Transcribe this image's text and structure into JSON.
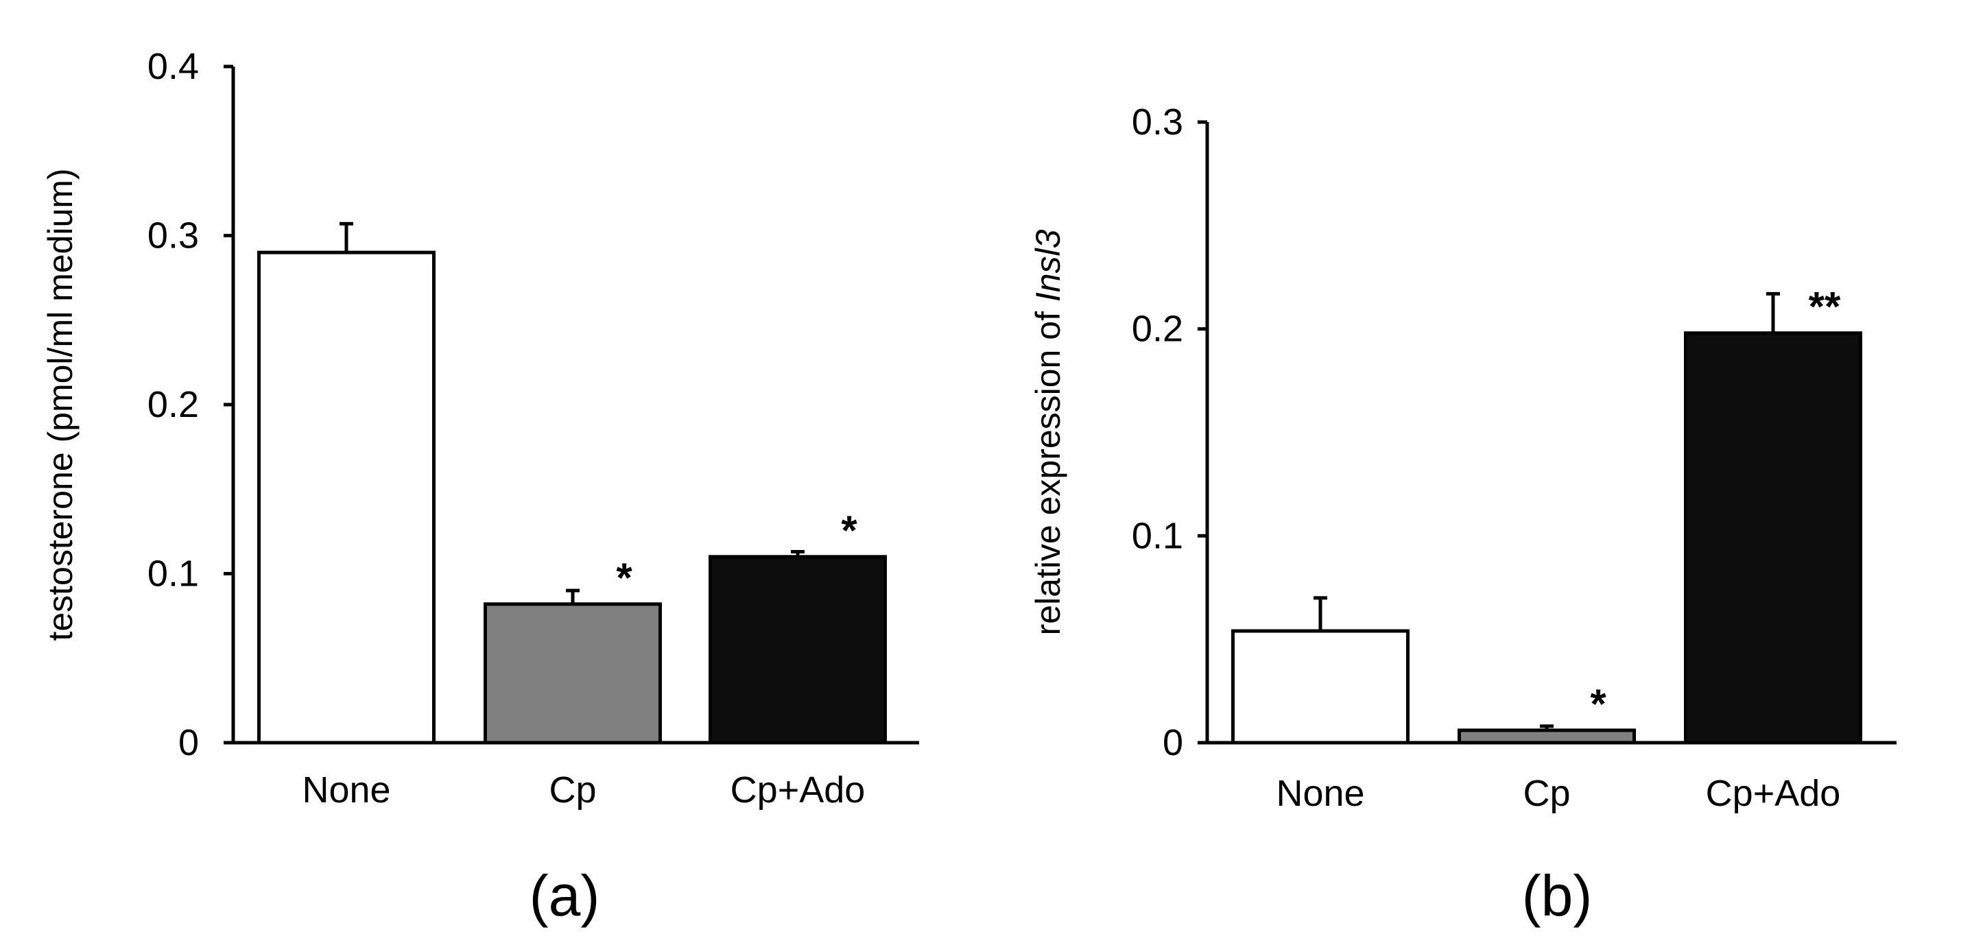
{
  "chart_data": [
    {
      "type": "bar",
      "panel_label": "(a)",
      "title": "",
      "xlabel": "",
      "ylabel": "testosterone (pmol/ml medium)",
      "ylabel_parts": [
        "testosterone (pmol/ml medium)"
      ],
      "ylim": [
        0,
        0.4
      ],
      "yticks": [
        0,
        0.1,
        0.2,
        0.3,
        0.4
      ],
      "ytick_labels": [
        "0",
        "0.1",
        "0.2",
        "0.3",
        "0.4"
      ],
      "grid": false,
      "categories": [
        "None",
        "Cp",
        "Cp+Ado"
      ],
      "values": [
        0.29,
        0.082,
        0.11
      ],
      "errors": [
        0.017,
        0.008,
        0.003
      ],
      "bar_colors": [
        "#ffffff",
        "#808080",
        "#0d0d0d"
      ],
      "significance": [
        "",
        "*",
        "*"
      ]
    },
    {
      "type": "bar",
      "panel_label": "(b)",
      "title": "",
      "xlabel": "",
      "ylabel": "relative expression of Insl3",
      "ylabel_parts": [
        "relative expression of ",
        "Insl3"
      ],
      "ylim": [
        0,
        0.3
      ],
      "yticks": [
        0,
        0.1,
        0.2,
        0.3
      ],
      "ytick_labels": [
        "0",
        "0.1",
        "0.2",
        "0.3"
      ],
      "grid": false,
      "categories": [
        "None",
        "Cp",
        "Cp+Ado"
      ],
      "values": [
        0.054,
        0.006,
        0.198
      ],
      "errors": [
        0.016,
        0.002,
        0.019
      ],
      "bar_colors": [
        "#ffffff",
        "#808080",
        "#0d0d0d"
      ],
      "significance": [
        "",
        "*",
        "**"
      ]
    }
  ]
}
